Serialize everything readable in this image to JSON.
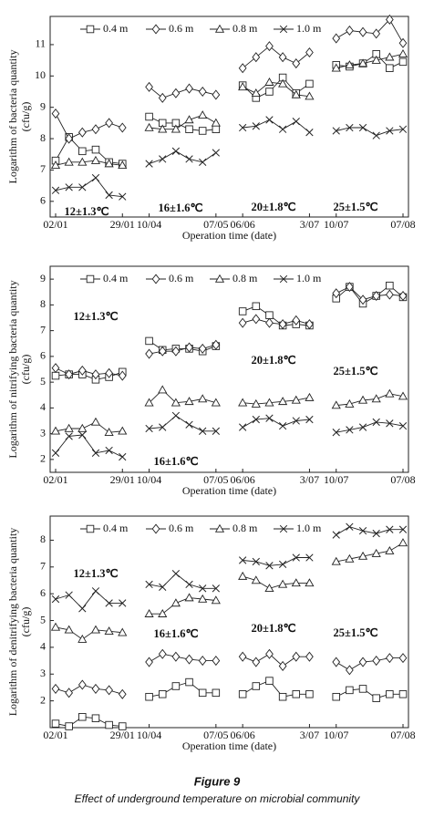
{
  "chart_data": [
    {
      "type": "line",
      "ylabel": "Logarithm of  bacteria quantity\n(cfu/g)",
      "xlabel": "Operation time (date)",
      "categories": [
        "02/01",
        null,
        null,
        null,
        null,
        "29/01",
        null,
        "10/04",
        null,
        null,
        null,
        null,
        "07/05",
        null,
        "06/06",
        null,
        null,
        null,
        null,
        "3/07",
        null,
        "10/07",
        null,
        null,
        null,
        null,
        "07/08"
      ],
      "ylim": [
        5.5,
        11.9
      ],
      "yticks": [
        6,
        7,
        8,
        9,
        10,
        11
      ],
      "annotations": [
        "12±1.3℃",
        "16±1.6℃",
        "20±1.8℃",
        "25±1.5℃"
      ],
      "series": [
        {
          "name": "0.4 m",
          "marker": "square",
          "color": "#222",
          "values": [
            7.3,
            8.05,
            7.6,
            7.65,
            7.25,
            7.2,
            null,
            8.7,
            8.5,
            8.5,
            8.3,
            8.25,
            8.3,
            null,
            9.7,
            9.3,
            9.5,
            9.95,
            9.45,
            9.75,
            null,
            10.35,
            10.3,
            10.4,
            10.7,
            10.25,
            10.45
          ]
        },
        {
          "name": "0.6 m",
          "marker": "diamond",
          "color": "#222",
          "values": [
            8.8,
            8.0,
            8.2,
            8.3,
            8.5,
            8.35,
            null,
            9.65,
            9.3,
            9.45,
            9.6,
            9.5,
            9.4,
            null,
            10.25,
            10.6,
            10.95,
            10.6,
            10.4,
            10.75,
            null,
            11.2,
            11.45,
            11.4,
            11.35,
            11.8,
            11.05
          ]
        },
        {
          "name": "0.8 m",
          "marker": "triangle",
          "color": "#222",
          "values": [
            7.15,
            7.25,
            7.25,
            7.3,
            7.2,
            7.15,
            null,
            8.35,
            8.3,
            8.3,
            8.6,
            8.75,
            8.5,
            null,
            9.65,
            9.45,
            9.8,
            9.75,
            9.4,
            9.35,
            null,
            10.25,
            10.35,
            10.4,
            10.5,
            10.6,
            10.7
          ]
        },
        {
          "name": "1.0 m",
          "marker": "x",
          "color": "#222",
          "values": [
            6.35,
            6.45,
            6.45,
            6.75,
            6.2,
            6.15,
            null,
            7.2,
            7.35,
            7.6,
            7.35,
            7.25,
            7.55,
            null,
            8.35,
            8.4,
            8.6,
            8.3,
            8.55,
            8.2,
            null,
            8.25,
            8.35,
            8.35,
            8.1,
            8.25,
            8.3
          ]
        }
      ]
    },
    {
      "type": "line",
      "ylabel": "Logarithm of  nitrifying bacteria quantity\n(cfu/g)",
      "xlabel": "Operation time (date)",
      "categories": [
        "02/01",
        null,
        null,
        null,
        null,
        "29/01",
        null,
        "10/04",
        null,
        null,
        null,
        null,
        "07/05",
        null,
        "06/06",
        null,
        null,
        null,
        null,
        "3/07",
        null,
        "10/07",
        null,
        null,
        null,
        null,
        "07/08"
      ],
      "ylim": [
        1.5,
        9.5
      ],
      "yticks": [
        2,
        3,
        4,
        5,
        6,
        7,
        8,
        9
      ],
      "annotations": [
        "12±1.3℃",
        "16±1.6℃",
        "20±1.8℃",
        "25±1.5℃"
      ],
      "series": [
        {
          "name": "0.4 m",
          "marker": "square",
          "color": "#222",
          "values": [
            5.25,
            5.3,
            5.3,
            5.1,
            5.2,
            5.4,
            null,
            6.6,
            6.25,
            6.3,
            6.3,
            6.2,
            6.4,
            null,
            7.75,
            7.95,
            7.6,
            7.2,
            7.25,
            7.2,
            null,
            8.25,
            8.7,
            8.05,
            8.35,
            8.75,
            8.3
          ]
        },
        {
          "name": "0.6 m",
          "marker": "diamond",
          "color": "#222",
          "values": [
            5.55,
            5.3,
            5.45,
            5.3,
            5.35,
            5.25,
            null,
            6.1,
            6.2,
            6.2,
            6.35,
            6.3,
            6.45,
            null,
            7.3,
            7.45,
            7.3,
            7.25,
            7.4,
            7.25,
            null,
            8.45,
            8.7,
            8.2,
            8.35,
            8.4,
            8.35
          ]
        },
        {
          "name": "0.8 m",
          "marker": "triangle",
          "color": "#222",
          "values": [
            3.1,
            3.2,
            3.2,
            3.45,
            3.05,
            3.1,
            null,
            4.2,
            4.7,
            4.2,
            4.25,
            4.35,
            4.2,
            null,
            4.2,
            4.15,
            4.2,
            4.25,
            4.3,
            4.4,
            null,
            4.1,
            4.15,
            4.3,
            4.35,
            4.55,
            4.45
          ]
        },
        {
          "name": "1.0 m",
          "marker": "x",
          "color": "#222",
          "values": [
            2.25,
            2.9,
            2.95,
            2.25,
            2.35,
            2.1,
            null,
            3.2,
            3.25,
            3.7,
            3.35,
            3.1,
            3.1,
            null,
            3.25,
            3.55,
            3.6,
            3.3,
            3.5,
            3.55,
            null,
            3.05,
            3.15,
            3.25,
            3.45,
            3.4,
            3.3
          ]
        }
      ]
    },
    {
      "type": "line",
      "ylabel": "Logarithm of denitrifying bacteria quantity\n(cfu/g)",
      "xlabel": "Operation time (date)",
      "categories": [
        "02/01",
        null,
        null,
        null,
        null,
        "29/01",
        null,
        "10/04",
        null,
        null,
        null,
        null,
        "07/05",
        null,
        "06/06",
        null,
        null,
        null,
        null,
        "3/07",
        null,
        "10/07",
        null,
        null,
        null,
        null,
        "07/08"
      ],
      "ylim": [
        1,
        8.9
      ],
      "yticks": [
        2,
        3,
        4,
        5,
        6,
        7,
        8
      ],
      "annotations": [
        "12±1.3℃",
        "16±1.6℃",
        "20±1.8℃",
        "25±1.5℃"
      ],
      "series": [
        {
          "name": "0.4 m",
          "marker": "square",
          "color": "#222",
          "values": [
            1.15,
            1.05,
            1.4,
            1.35,
            1.1,
            1.05,
            null,
            2.15,
            2.25,
            2.55,
            2.7,
            2.3,
            2.3,
            null,
            2.25,
            2.55,
            2.75,
            2.15,
            2.25,
            2.25,
            null,
            2.15,
            2.4,
            2.45,
            2.1,
            2.25,
            2.25
          ]
        },
        {
          "name": "0.6 m",
          "marker": "diamond",
          "color": "#222",
          "values": [
            2.45,
            2.3,
            2.6,
            2.45,
            2.4,
            2.25,
            null,
            3.45,
            3.75,
            3.65,
            3.55,
            3.5,
            3.5,
            null,
            3.65,
            3.45,
            3.75,
            3.3,
            3.65,
            3.65,
            null,
            3.45,
            3.15,
            3.45,
            3.5,
            3.6,
            3.6
          ]
        },
        {
          "name": "0.8 m",
          "marker": "triangle",
          "color": "#222",
          "values": [
            4.75,
            4.65,
            4.3,
            4.65,
            4.6,
            4.55,
            null,
            5.25,
            5.25,
            5.65,
            5.85,
            5.8,
            5.75,
            null,
            6.65,
            6.5,
            6.2,
            6.35,
            6.4,
            6.4,
            null,
            7.2,
            7.3,
            7.4,
            7.5,
            7.6,
            7.9
          ]
        },
        {
          "name": "1.0 m",
          "marker": "x",
          "color": "#222",
          "values": [
            5.8,
            5.95,
            5.45,
            6.1,
            5.65,
            5.65,
            null,
            6.35,
            6.25,
            6.75,
            6.35,
            6.2,
            6.2,
            null,
            7.25,
            7.2,
            7.05,
            7.1,
            7.35,
            7.35,
            null,
            8.2,
            8.5,
            8.35,
            8.25,
            8.4,
            8.4
          ]
        }
      ]
    }
  ],
  "caption": {
    "label": "Figure 9",
    "text": "Effect of underground temperature on microbial community"
  }
}
